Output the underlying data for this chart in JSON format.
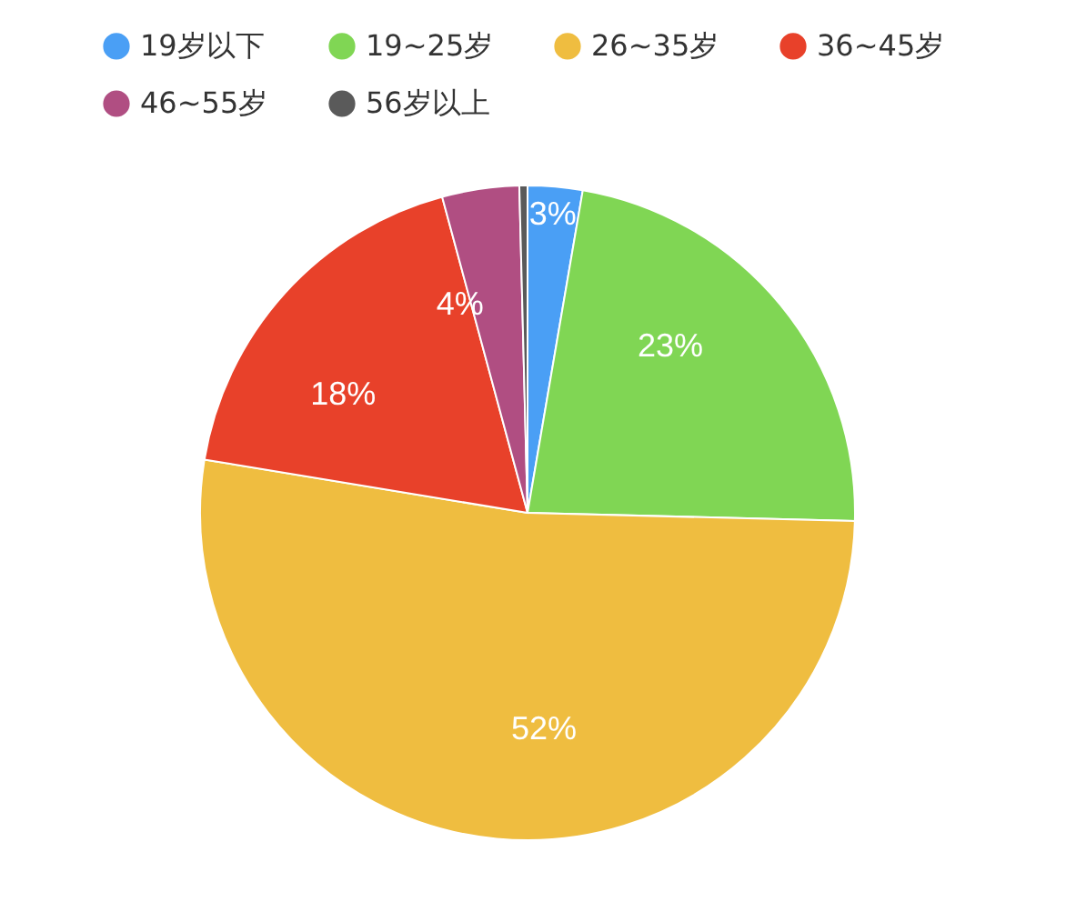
{
  "chart_data": {
    "type": "pie",
    "categories": [
      "19岁以下",
      "19~25岁",
      "26~35岁",
      "36~45岁",
      "46~55岁",
      "56岁以上"
    ],
    "values": [
      2.7,
      22.7,
      52.2,
      18.2,
      3.8,
      0.4
    ],
    "value_labels": [
      "3%",
      "23%",
      "52%",
      "18%",
      "4%",
      null
    ],
    "colors": [
      "#4a9ff5",
      "#80d654",
      "#efbd40",
      "#e8412a",
      "#b04e82",
      "#5a5a5a"
    ],
    "legend": "top"
  }
}
